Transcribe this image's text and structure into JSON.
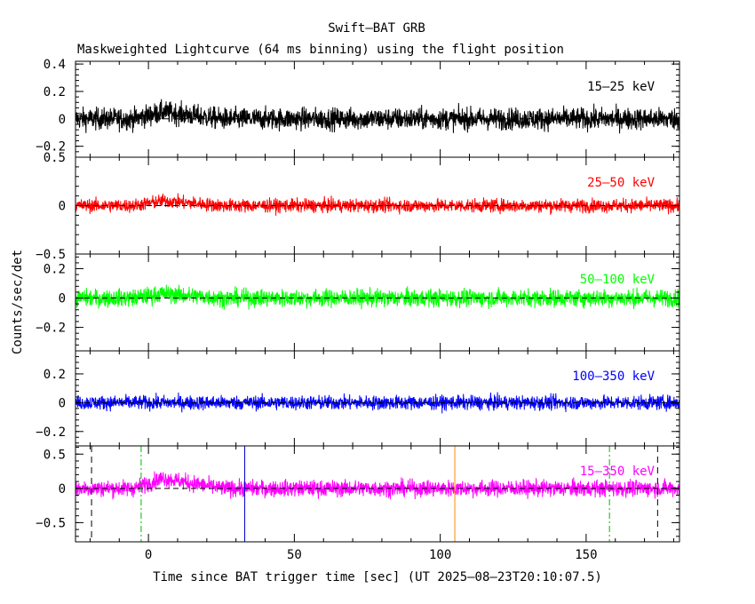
{
  "chart_data": {
    "type": "line",
    "title": "Swift–BAT GRB",
    "subtitle": "Maskweighted Lightcurve (64 ms binning) using the flight position",
    "xlabel": "Time since BAT trigger time [sec] (UT 2025–08–23T20:10:07.5)",
    "ylabel": "Counts/sec/det",
    "xlim": [
      -25,
      182
    ],
    "xticks": [
      0,
      50,
      100,
      150
    ],
    "xtick_labels": [
      "0",
      "50",
      "100",
      "150"
    ],
    "panels": [
      {
        "band": "15–25 keV",
        "color": "#000000",
        "ylim": [
          -0.28,
          0.42
        ],
        "yticks": [
          0.4,
          0.2,
          0,
          -0.2
        ],
        "ytick_labels": [
          "0.4",
          "0.2",
          "0",
          "−0.2"
        ],
        "noise_sigma": 0.04,
        "bump_peak": 0.05
      },
      {
        "band": "25–50 keV",
        "color": "#ff0000",
        "ylim": [
          -0.5,
          0.5
        ],
        "yticks": [
          0.5,
          0,
          -0.5
        ],
        "ytick_labels": [
          "0.5",
          "0",
          "−0.5"
        ],
        "noise_sigma": 0.035,
        "bump_peak": 0.05
      },
      {
        "band": "50–100 keV",
        "color": "#00ff00",
        "ylim": [
          -0.36,
          0.3
        ],
        "yticks": [
          0.2,
          0,
          -0.2
        ],
        "ytick_labels": [
          "0.2",
          "0",
          "−0.2"
        ],
        "noise_sigma": 0.03,
        "bump_peak": 0.03
      },
      {
        "band": "100–350 keV",
        "color": "#0000ff",
        "ylim": [
          -0.3,
          0.36
        ],
        "yticks": [
          0.2,
          0,
          -0.2
        ],
        "ytick_labels": [
          "0.2",
          "0",
          "−0.2"
        ],
        "noise_sigma": 0.025,
        "bump_peak": 0.0
      },
      {
        "band": "15–350 keV",
        "color": "#ff00ff",
        "ylim": [
          -0.78,
          0.62
        ],
        "yticks": [
          0.5,
          0,
          -0.5
        ],
        "ytick_labels": [
          "0.5",
          "0",
          "−0.5"
        ],
        "noise_sigma": 0.06,
        "bump_peak": 0.15,
        "markers": [
          {
            "x": -19.5,
            "color": "#000000",
            "style": "dashed"
          },
          {
            "x": -2.5,
            "color": "#00bb00",
            "style": "dashdot"
          },
          {
            "x": 33,
            "color": "#0000cc",
            "style": "solid"
          },
          {
            "x": 105,
            "color": "#ff8800",
            "style": "solid"
          },
          {
            "x": 158,
            "color": "#00bb00",
            "style": "dashdot"
          },
          {
            "x": 174.5,
            "color": "#000000",
            "style": "dashed"
          }
        ]
      }
    ],
    "bump": {
      "t_start": -5,
      "t_peak": 5,
      "t_end": 25
    },
    "bin_seconds": 0.064
  }
}
